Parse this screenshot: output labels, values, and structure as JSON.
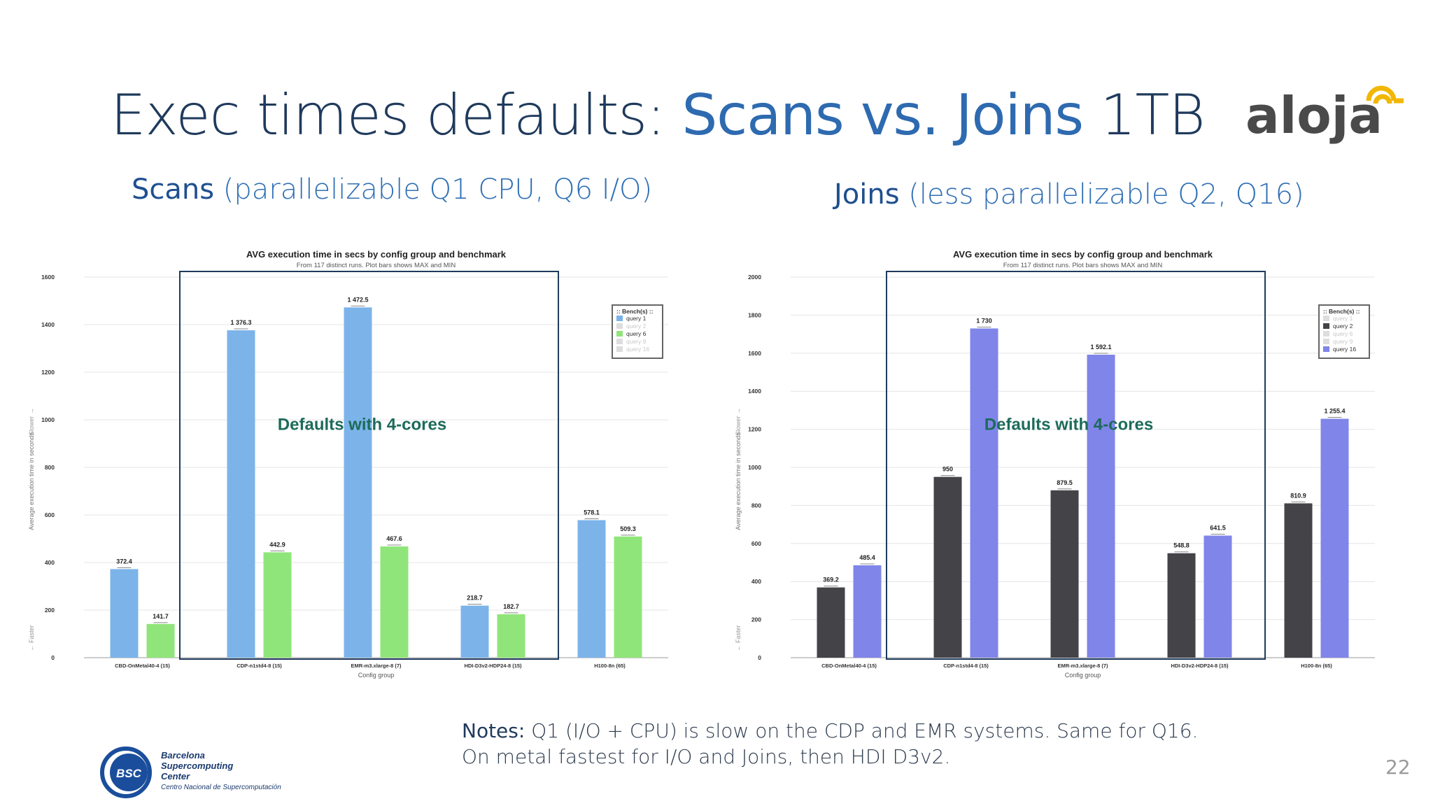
{
  "slide": {
    "title_plain": "Exec times defaults: ",
    "title_accent": "Scans vs. Joins",
    "title_suffix": " 1TB",
    "left_subtitle_strong": "Scans",
    "left_subtitle_rest": " (parallelizable Q1 CPU, Q6 I/O)",
    "right_subtitle_strong": "Joins",
    "right_subtitle_rest": " (less parallelizable Q2, Q16)",
    "notes_label": "Notes:",
    "notes_line1": "  Q1  (I/O + CPU) is slow on the CDP and EMR systems.  Same for Q16.",
    "notes_line2": "On metal fastest for I/O and Joins, then HDI D3v2.",
    "page_number": "22",
    "logo_text": "aloja",
    "bsc_badge": "BSC",
    "bsc_line1": "Barcelona",
    "bsc_line2": "Supercomputing",
    "bsc_line3": "Center",
    "bsc_line4": "Centro Nacional de Supercomputación"
  },
  "chart_data": [
    {
      "type": "bar",
      "title": "AVG execution time in secs by config group and benchmark",
      "subtitle": "From 117 distinct runs. Plot bars shows MAX and MIN",
      "xlabel": "Config group",
      "ylabel": "Average execution time in seconds",
      "ylabel_top": "Slower →",
      "ylabel_bottom": "← Faster",
      "ylim": [
        0,
        1600
      ],
      "yticks": [
        0,
        200,
        400,
        600,
        800,
        1000,
        1200,
        1400,
        1600
      ],
      "categories": [
        "CBD-OnMetal40-4 (15)",
        "CDP-n1std4-8 (15)",
        "EMR-m3.xlarge-8 (7)",
        "HDI-D3v2-HDP24-8 (15)",
        "H100-8n (65)"
      ],
      "series": [
        {
          "name": "query 1",
          "color": "#7cb4ea",
          "values": [
            372.4,
            1376.3,
            1472.5,
            218.7,
            578.1
          ],
          "labels": [
            "372.4",
            "1 376.3",
            "1 472.5",
            "218.7",
            "578.1"
          ]
        },
        {
          "name": "query 6",
          "color": "#90e57a",
          "values": [
            141.7,
            442.9,
            467.6,
            182.7,
            509.3
          ],
          "labels": [
            "141.7",
            "442.9",
            "467.6",
            "182.7",
            "509.3"
          ]
        }
      ],
      "legend": {
        "title": ":: Bench(s) ::",
        "placement": "top-right",
        "entries": [
          {
            "name": "query 1",
            "color": "#7cb4ea",
            "active": true
          },
          {
            "name": "query 2",
            "color": "#dddddd",
            "active": false
          },
          {
            "name": "query 6",
            "color": "#90e57a",
            "active": true
          },
          {
            "name": "query 9",
            "color": "#dddddd",
            "active": false
          },
          {
            "name": "query 16",
            "color": "#dddddd",
            "active": false
          }
        ]
      },
      "annotation": "Defaults with 4-cores",
      "grid": true
    },
    {
      "type": "bar",
      "title": "AVG execution time in secs by config group and benchmark",
      "subtitle": "From 117 distinct runs. Plot bars shows MAX and MIN",
      "xlabel": "Config group",
      "ylabel": "Average execution time in seconds",
      "ylabel_top": "Slower →",
      "ylabel_bottom": "← Faster",
      "ylim": [
        0,
        2000
      ],
      "yticks": [
        0,
        200,
        400,
        600,
        800,
        1000,
        1200,
        1400,
        1600,
        1800,
        2000
      ],
      "categories": [
        "CBD-OnMetal40-4 (15)",
        "CDP-n1std4-8 (15)",
        "EMR-m3.xlarge-8 (7)",
        "HDI-D3v2-HDP24-8 (15)",
        "H100-8n (65)"
      ],
      "series": [
        {
          "name": "query 2",
          "color": "#434348",
          "values": [
            369.2,
            950,
            879.5,
            548.8,
            810.9
          ],
          "labels": [
            "369.2",
            "950",
            "879.5",
            "548.8",
            "810.9"
          ]
        },
        {
          "name": "query 16",
          "color": "#8085e9",
          "values": [
            485.4,
            1730,
            1592.1,
            641.5,
            1255.4
          ],
          "labels": [
            "485.4",
            "1 730",
            "1 592.1",
            "641.5",
            "1 255.4"
          ]
        }
      ],
      "legend": {
        "title": ":: Bench(s) ::",
        "placement": "top-right",
        "entries": [
          {
            "name": "query 1",
            "color": "#dddddd",
            "active": false
          },
          {
            "name": "query 2",
            "color": "#434348",
            "active": true
          },
          {
            "name": "query 6",
            "color": "#dddddd",
            "active": false
          },
          {
            "name": "query 9",
            "color": "#dddddd",
            "active": false
          },
          {
            "name": "query 16",
            "color": "#8085e9",
            "active": true
          }
        ]
      },
      "annotation": "Defaults with 4-cores",
      "grid": true
    }
  ]
}
